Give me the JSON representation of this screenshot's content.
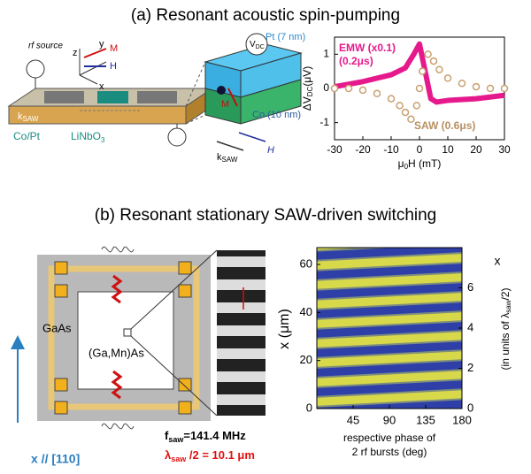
{
  "panel_a": {
    "title": "(a) Resonant acoustic spin-pumping",
    "diagram": {
      "rf_source": "rf source",
      "z": "z",
      "y": "y",
      "x": "x",
      "m": "M",
      "h": "H",
      "co_pt": "Co/Pt",
      "linbo": [
        "LiNbO",
        "3"
      ],
      "k_saw": [
        "k",
        "SAW"
      ],
      "pt": "Pt (7 nm)",
      "co": "Co (10 nm)",
      "vdc": [
        "V",
        "DC"
      ],
      "h2": "H",
      "m2": "M",
      "k_saw2": [
        "k",
        "SAW"
      ]
    },
    "chart": {
      "type": "line",
      "xlabel": [
        "μ",
        "0",
        "H (mT)"
      ],
      "ylabel": [
        "ΔV",
        "DC",
        "(μV)"
      ],
      "xlim": [
        -30,
        30
      ],
      "ylim": [
        -1.5,
        1.5
      ],
      "xticks": [
        -30,
        -20,
        -10,
        0,
        10,
        20,
        30
      ],
      "yticks": [
        -1,
        0,
        1
      ],
      "series": [
        {
          "name": "EMW (x0.1)",
          "pulse": "(0.2μs)",
          "color": "#e6198c",
          "style": "band",
          "x": [
            -30,
            -20,
            -10,
            -5,
            -2,
            0,
            2,
            4,
            6,
            10,
            20,
            30
          ],
          "values": [
            0.05,
            0.2,
            0.4,
            0.6,
            1.0,
            1.3,
            0.5,
            -0.3,
            -0.4,
            -0.35,
            -0.3,
            -0.2
          ]
        },
        {
          "name": "SAW (0.6μs)",
          "color": "#c8a070",
          "style": "circles",
          "x": [
            -30,
            -25,
            -20,
            -15,
            -10,
            -7,
            -5,
            -3,
            -1,
            0,
            1,
            3,
            5,
            7,
            10,
            15,
            20,
            25,
            30
          ],
          "values": [
            0,
            0,
            -0.05,
            -0.15,
            -0.3,
            -0.5,
            -0.7,
            -0.9,
            -0.5,
            0,
            0.5,
            1.0,
            0.8,
            0.55,
            0.3,
            0.15,
            0.05,
            0,
            0
          ]
        }
      ]
    }
  },
  "panel_b": {
    "title": "(b) Resonant stationary SAW-driven switching",
    "diagram": {
      "gaas": "GaAs",
      "gamnas": "(Ga,Mn)As",
      "axis": "x // [110]",
      "fsaw": [
        "f",
        "saw",
        "=141.4 MHz"
      ],
      "lambda": [
        "λ",
        "saw",
        " /2 = 10.1 μm"
      ]
    },
    "chart": {
      "type": "image",
      "xlabel": [
        "respective phase of",
        "2 rf bursts (deg)"
      ],
      "ylabel": "x (μm)",
      "y2label": [
        "x",
        "(in units of λ",
        "saw",
        "/2)"
      ],
      "xlim": [
        0,
        180
      ],
      "ylim": [
        0,
        67
      ],
      "y2lim": [
        0,
        8
      ],
      "xticks": [
        45,
        90,
        135,
        180
      ],
      "yticks": [
        0,
        20,
        40,
        60
      ],
      "y2ticks": [
        0,
        2,
        4,
        6
      ]
    }
  }
}
